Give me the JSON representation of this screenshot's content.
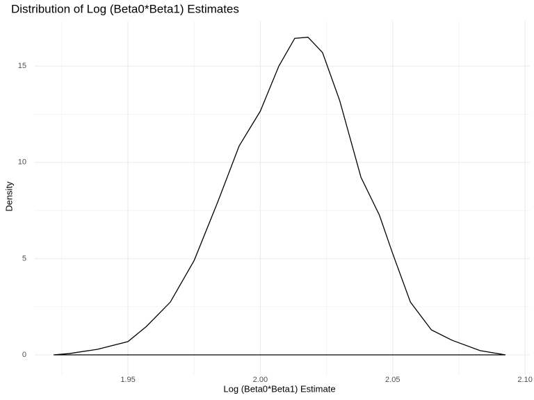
{
  "chart_data": {
    "type": "line",
    "title": "Distribution of Log (Beta0*Beta1) Estimates",
    "x_label": "Log (Beta0*Beta1) Estimate",
    "y_label": "Density",
    "x": [
      1.9219,
      1.928,
      1.9385,
      1.95,
      1.957,
      1.966,
      1.975,
      1.984,
      1.992,
      2.0,
      2.007,
      2.013,
      2.018,
      2.0235,
      2.03,
      2.038,
      2.045,
      2.05,
      2.0567,
      2.0646,
      2.0724,
      2.083,
      2.0926
    ],
    "series": [
      {
        "color": "#000000",
        "values": [
          0,
          0.07,
          0.29,
          0.69,
          1.48,
          2.74,
          4.9,
          7.97,
          10.85,
          12.66,
          15.0,
          16.44,
          16.5,
          15.7,
          13.2,
          9.23,
          7.25,
          5.26,
          2.74,
          1.3,
          0.76,
          0.22,
          0
        ]
      }
    ],
    "xlim": [
      1.9148,
      2.1018
    ],
    "ylim": [
      -1.046,
      17.35
    ],
    "xticks": [
      1.95,
      {
        "value": 2.0,
        "label": "2.00"
      },
      2.05,
      {
        "value": 2.1,
        "label": "2.10"
      }
    ],
    "yticks": [
      0,
      5,
      10,
      15
    ],
    "x_minor_ticks": [
      1.925,
      1.975,
      2.025,
      2.075
    ],
    "y_minor_ticks": [
      2.5,
      7.5,
      12.5
    ],
    "grid": true
  }
}
